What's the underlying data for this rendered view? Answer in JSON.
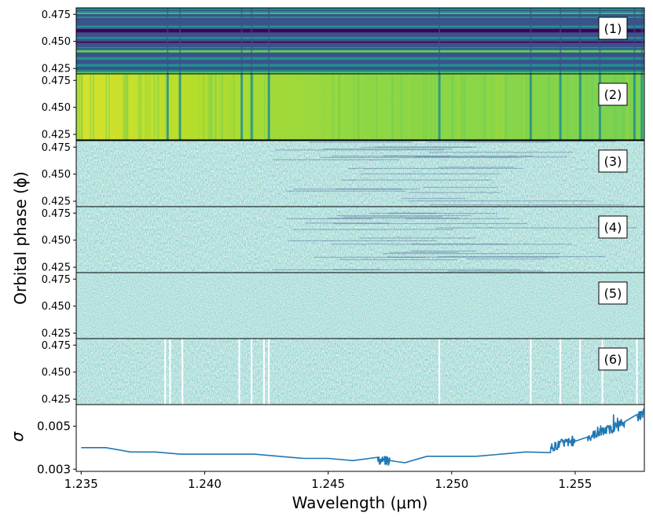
{
  "chart_data": {
    "type": "heatmap",
    "xlabel": "Wavelength (μm)",
    "ylabel_top": "Orbital phase (ϕ)",
    "ylabel_bottom": "σ",
    "xlim": [
      1.2348,
      1.2578
    ],
    "x_ticks": [
      1.235,
      1.24,
      1.245,
      1.25,
      1.255
    ],
    "x_tick_labels": [
      "1.235",
      "1.240",
      "1.245",
      "1.250",
      "1.255"
    ],
    "phase_lim": [
      0.42,
      0.481
    ],
    "phase_ticks": [
      0.425,
      0.45,
      0.475
    ],
    "phase_tick_labels": [
      "0.425",
      "0.450",
      "0.475"
    ],
    "colormap": [
      "#440154",
      "#3b528b",
      "#21918c",
      "#5ec962",
      "#fde725"
    ],
    "panels": [
      {
        "label": "(1)",
        "style": "horizontal-stripes"
      },
      {
        "label": "(2)",
        "style": "bright-with-telluric-lines"
      },
      {
        "label": "(3)",
        "style": "residual-noise-with-structure"
      },
      {
        "label": "(4)",
        "style": "residual-noise-with-structure"
      },
      {
        "label": "(5)",
        "style": "white-noise"
      },
      {
        "label": "(6)",
        "style": "noise-with-masked-columns"
      }
    ],
    "telluric_lines_um": [
      1.2385,
      1.239,
      1.2415,
      1.2419,
      1.2426,
      1.2495,
      1.2532,
      1.2544,
      1.2552,
      1.256,
      1.2574,
      1.2577
    ],
    "masked_columns_um": [
      1.2384,
      1.2386,
      1.2391,
      1.2414,
      1.2419,
      1.2424,
      1.2426,
      1.2495,
      1.2532,
      1.2544,
      1.2552,
      1.2561,
      1.2575,
      1.2578
    ],
    "sigma_lim": [
      0.0029,
      0.006
    ],
    "sigma_ticks": [
      0.003,
      0.005
    ],
    "sigma_tick_labels": [
      "0.003",
      "0.005"
    ],
    "sigma_series": {
      "name": "",
      "color": "#1f77b4",
      "x": [
        1.235,
        1.236,
        1.237,
        1.238,
        1.239,
        1.24,
        1.241,
        1.242,
        1.243,
        1.244,
        1.245,
        1.246,
        1.247,
        1.2475,
        1.2481,
        1.249,
        1.25,
        1.251,
        1.252,
        1.253,
        1.254,
        1.2545,
        1.255,
        1.2555,
        1.256,
        1.2565,
        1.257,
        1.2575,
        1.2578
      ],
      "y": [
        0.004,
        0.004,
        0.0038,
        0.0038,
        0.0037,
        0.0037,
        0.0037,
        0.0037,
        0.0036,
        0.0035,
        0.0035,
        0.0034,
        0.0034,
        0.0034,
        0.0033,
        0.0036,
        0.0036,
        0.0036,
        0.0037,
        0.0038,
        0.004,
        0.0042,
        0.0043,
        0.0045,
        0.0047,
        0.0049,
        0.0052,
        0.0054,
        0.0056
      ]
    }
  }
}
